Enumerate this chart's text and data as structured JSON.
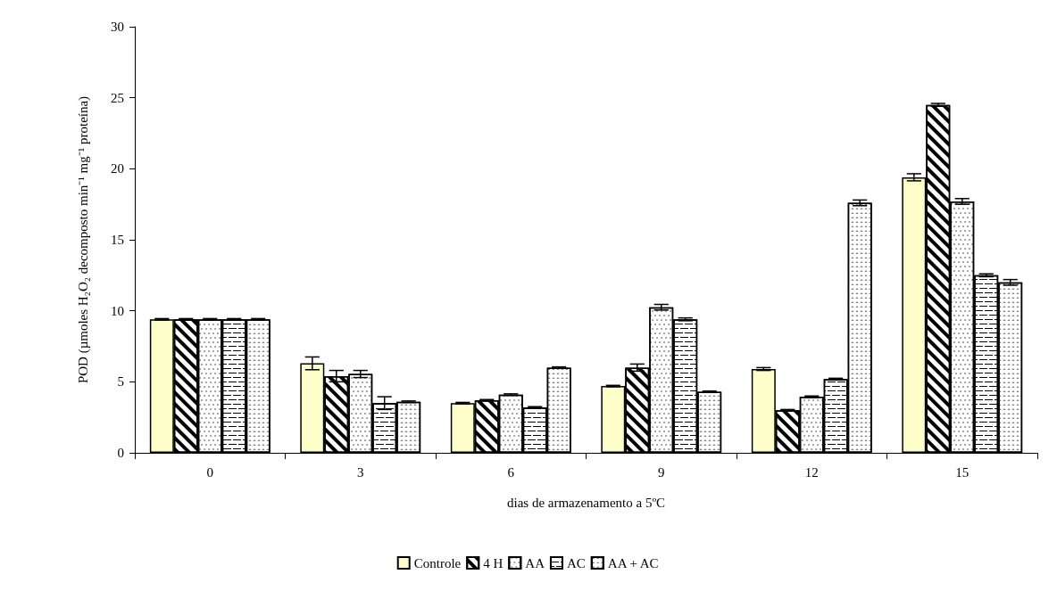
{
  "chart_data": {
    "type": "bar",
    "xlabel": "dias de armazenamento a 5ºC",
    "ylabel": "POD (µmoles H₂O₂ decomposto min⁻¹ mg⁻¹ proteína)",
    "categories": [
      "0",
      "3",
      "6",
      "9",
      "12",
      "15"
    ],
    "series": [
      {
        "name": "Controle",
        "color": "#ffffcc",
        "values": [
          9.4,
          6.3,
          3.5,
          4.7,
          5.9,
          19.4
        ],
        "errors": [
          0.05,
          0.45,
          0.05,
          0.05,
          0.1,
          0.25
        ]
      },
      {
        "name": "4 H",
        "color": "#ffffff",
        "values": [
          9.4,
          5.4,
          3.7,
          6.0,
          3.0,
          24.5
        ],
        "errors": [
          0.05,
          0.4,
          0.05,
          0.25,
          0.05,
          0.1
        ]
      },
      {
        "name": "AA",
        "color": "#ffffff",
        "values": [
          9.4,
          5.55,
          4.1,
          10.25,
          3.95,
          17.7
        ],
        "errors": [
          0.05,
          0.25,
          0.05,
          0.2,
          0.05,
          0.2
        ]
      },
      {
        "name": "AC",
        "color": "#ffffff",
        "values": [
          9.4,
          3.5,
          3.2,
          9.4,
          5.2,
          12.5
        ],
        "errors": [
          0.05,
          0.45,
          0.05,
          0.1,
          0.05,
          0.1
        ]
      },
      {
        "name": "AA + AC",
        "color": "#ffffff",
        "values": [
          9.4,
          3.6,
          6.0,
          4.3,
          17.6,
          12.0
        ],
        "errors": [
          0.05,
          0.05,
          0.05,
          0.05,
          0.2,
          0.2
        ]
      }
    ],
    "ylim": [
      0,
      30
    ],
    "yticks": [
      0,
      5,
      10,
      15,
      20,
      25,
      30
    ],
    "grid": false,
    "legend": "bottom"
  }
}
